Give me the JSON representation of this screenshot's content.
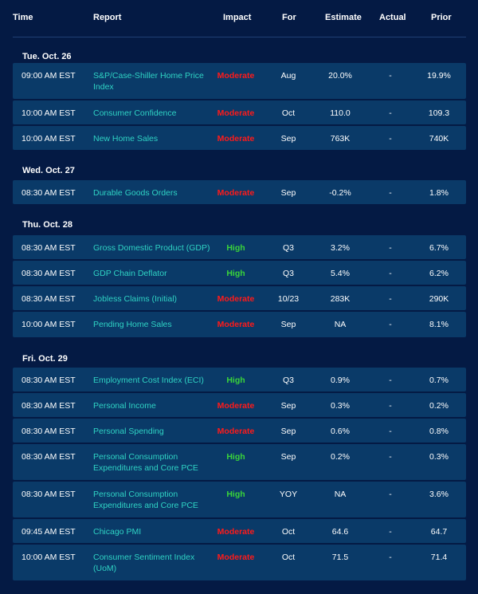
{
  "columns": {
    "time": "Time",
    "report": "Report",
    "impact": "Impact",
    "for": "For",
    "estimate": "Estimate",
    "actual": "Actual",
    "prior": "Prior"
  },
  "colors": {
    "background": "#041a44",
    "row_background": "#0a3a68",
    "report_link": "#2fd3c4",
    "impact_moderate": "#ff1a1a",
    "impact_high": "#3ad43a"
  },
  "days": [
    {
      "label": "Tue. Oct. 26",
      "rows": [
        {
          "time": "09:00 AM EST",
          "report": "S&P/Case-Shiller Home Price Index",
          "impact": "Moderate",
          "for": "Aug",
          "estimate": "20.0%",
          "actual": "-",
          "prior": "19.9%"
        },
        {
          "time": "10:00 AM EST",
          "report": "Consumer Confidence",
          "impact": "Moderate",
          "for": "Oct",
          "estimate": "110.0",
          "actual": "-",
          "prior": "109.3"
        },
        {
          "time": "10:00 AM EST",
          "report": "New Home Sales",
          "impact": "Moderate",
          "for": "Sep",
          "estimate": "763K",
          "actual": "-",
          "prior": "740K"
        }
      ]
    },
    {
      "label": "Wed. Oct. 27",
      "rows": [
        {
          "time": "08:30 AM EST",
          "report": "Durable Goods Orders",
          "impact": "Moderate",
          "for": "Sep",
          "estimate": "-0.2%",
          "actual": "-",
          "prior": "1.8%"
        }
      ]
    },
    {
      "label": "Thu. Oct. 28",
      "rows": [
        {
          "time": "08:30 AM EST",
          "report": "Gross Domestic Product (GDP)",
          "impact": "High",
          "for": "Q3",
          "estimate": "3.2%",
          "actual": "-",
          "prior": "6.7%"
        },
        {
          "time": "08:30 AM EST",
          "report": "GDP Chain Deflator",
          "impact": "High",
          "for": "Q3",
          "estimate": "5.4%",
          "actual": "-",
          "prior": "6.2%"
        },
        {
          "time": "08:30 AM EST",
          "report": "Jobless Claims (Initial)",
          "impact": "Moderate",
          "for": "10/23",
          "estimate": "283K",
          "actual": "-",
          "prior": "290K"
        },
        {
          "time": "10:00 AM EST",
          "report": "Pending Home Sales",
          "impact": "Moderate",
          "for": "Sep",
          "estimate": "NA",
          "actual": "-",
          "prior": "8.1%"
        }
      ]
    },
    {
      "label": "Fri. Oct. 29",
      "rows": [
        {
          "time": "08:30 AM EST",
          "report": "Employment Cost Index (ECI)",
          "impact": "High",
          "for": "Q3",
          "estimate": "0.9%",
          "actual": "-",
          "prior": "0.7%"
        },
        {
          "time": "08:30 AM EST",
          "report": "Personal Income",
          "impact": "Moderate",
          "for": "Sep",
          "estimate": "0.3%",
          "actual": "-",
          "prior": "0.2%"
        },
        {
          "time": "08:30 AM EST",
          "report": "Personal Spending",
          "impact": "Moderate",
          "for": "Sep",
          "estimate": "0.6%",
          "actual": "-",
          "prior": "0.8%"
        },
        {
          "time": "08:30 AM EST",
          "report": "Personal Consumption Expenditures and Core PCE",
          "impact": "High",
          "for": "Sep",
          "estimate": "0.2%",
          "actual": "-",
          "prior": "0.3%"
        },
        {
          "time": "08:30 AM EST",
          "report": "Personal Consumption Expenditures and Core PCE",
          "impact": "High",
          "for": "YOY",
          "estimate": "NA",
          "actual": "-",
          "prior": "3.6%"
        },
        {
          "time": "09:45 AM EST",
          "report": "Chicago PMI",
          "impact": "Moderate",
          "for": "Oct",
          "estimate": "64.6",
          "actual": "-",
          "prior": "64.7"
        },
        {
          "time": "10:00 AM EST",
          "report": "Consumer Sentiment Index (UoM)",
          "impact": "Moderate",
          "for": "Oct",
          "estimate": "71.5",
          "actual": "-",
          "prior": "71.4"
        }
      ]
    }
  ]
}
